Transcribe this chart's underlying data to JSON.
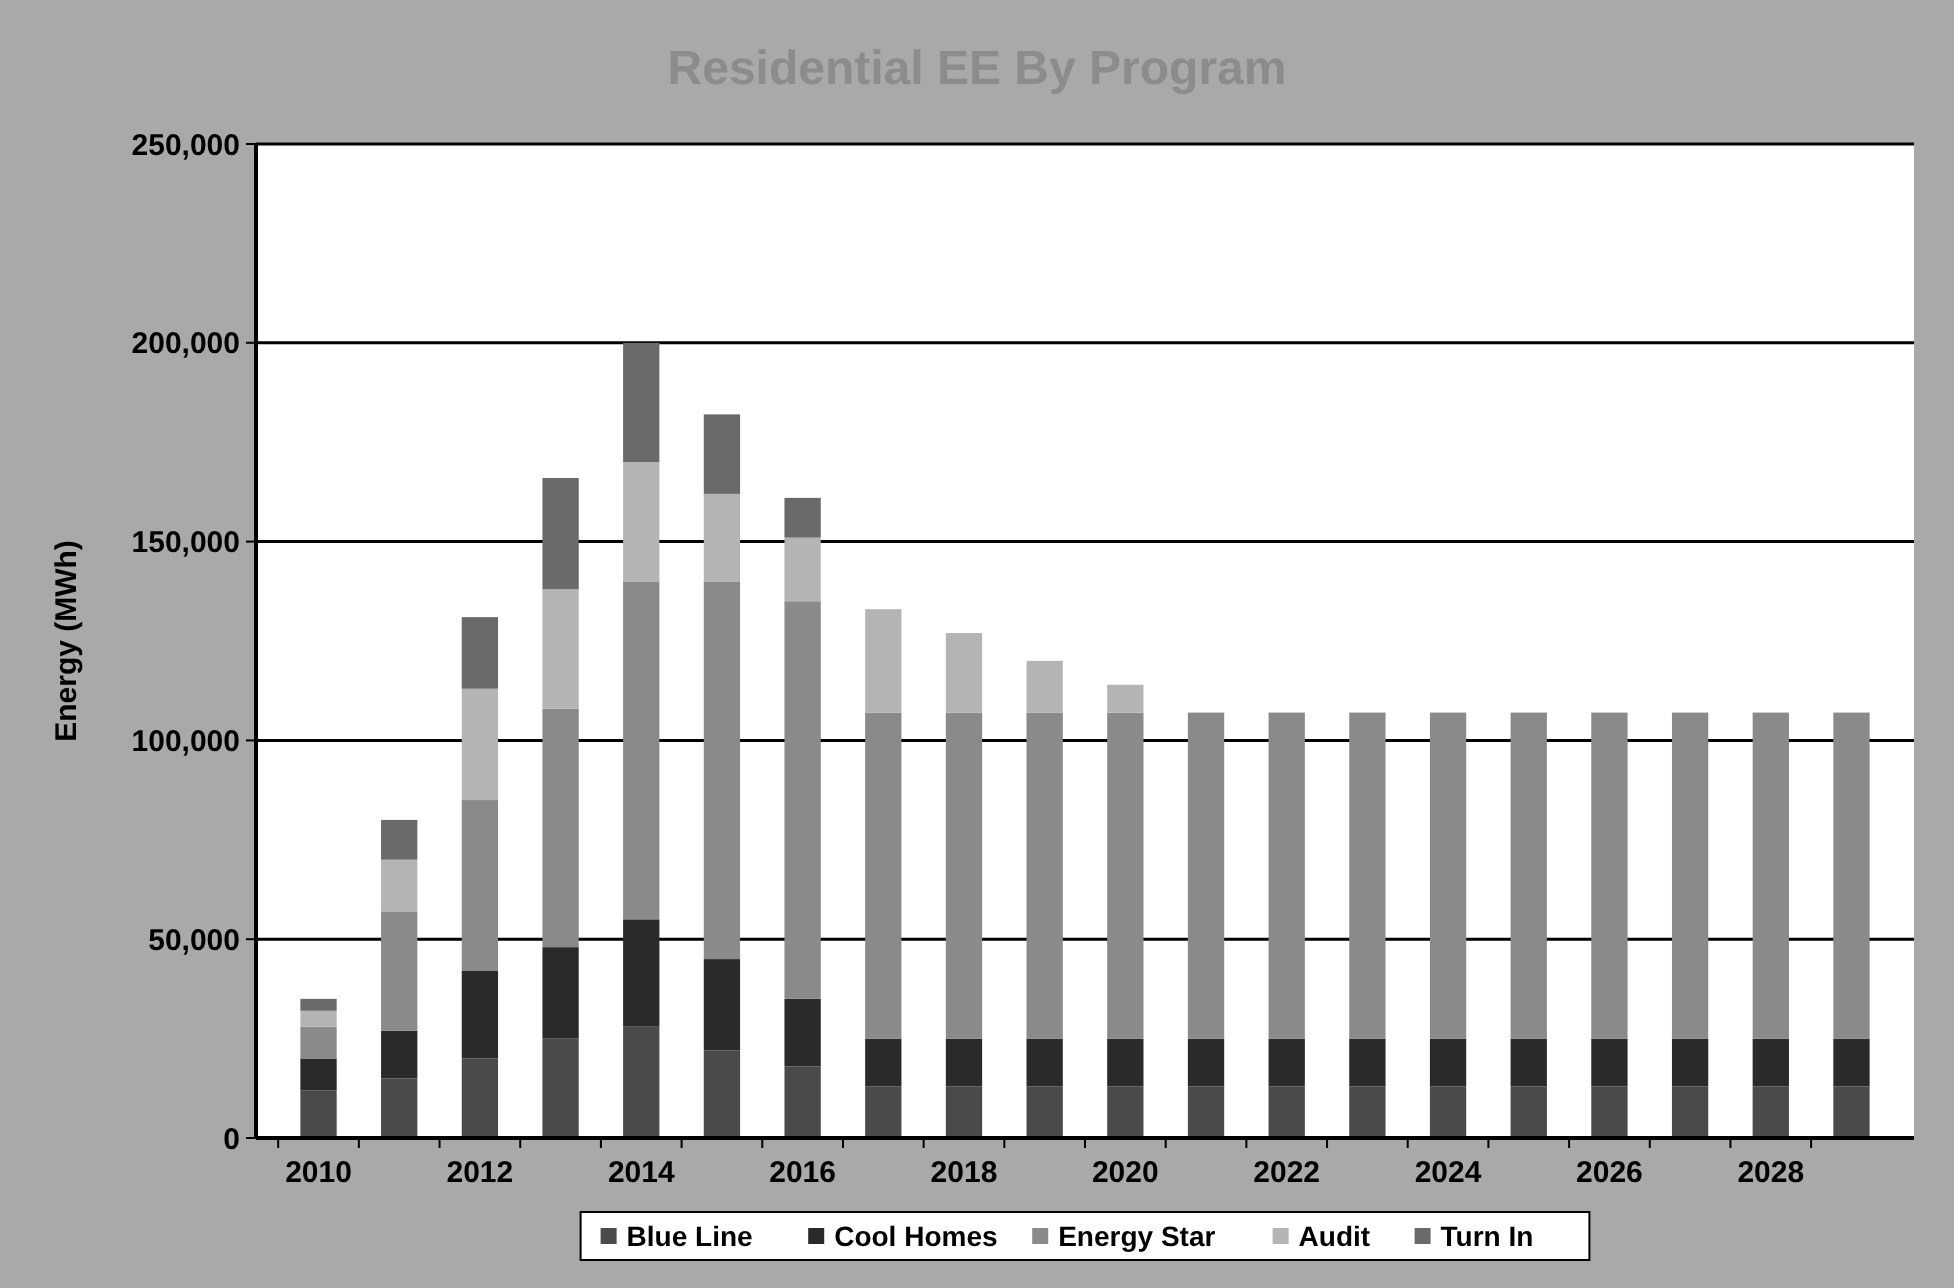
{
  "chart_data": {
    "type": "bar",
    "stacked": true,
    "title": "Residential EE By Program",
    "ylabel": "Energy (MWh)",
    "categories": [
      "2010",
      null,
      "2012",
      null,
      "2014",
      null,
      "2016",
      null,
      "2018",
      null,
      "2020",
      null,
      "2022",
      null,
      "2024",
      null,
      "2026",
      null,
      "2028",
      null
    ],
    "series": [
      {
        "name": "Blue Line",
        "color": "#4a4a4a",
        "values": [
          12000,
          15000,
          20000,
          25000,
          28000,
          22000,
          18000,
          13000,
          13000,
          13000,
          13000,
          13000,
          13000,
          13000,
          13000,
          13000,
          13000,
          13000,
          13000,
          13000
        ]
      },
      {
        "name": "Cool Homes",
        "color": "#2a2a2a",
        "values": [
          8000,
          12000,
          22000,
          23000,
          27000,
          23000,
          17000,
          12000,
          12000,
          12000,
          12000,
          12000,
          12000,
          12000,
          12000,
          12000,
          12000,
          12000,
          12000,
          12000
        ]
      },
      {
        "name": "Energy Star",
        "color": "#8a8a8a",
        "values": [
          8000,
          30000,
          43000,
          60000,
          85000,
          95000,
          100000,
          82000,
          82000,
          82000,
          82000,
          82000,
          82000,
          82000,
          82000,
          82000,
          82000,
          82000,
          82000,
          82000
        ]
      },
      {
        "name": "Audit",
        "color": "#b4b4b4",
        "values": [
          4000,
          13000,
          28000,
          30000,
          30000,
          22000,
          16000,
          26000,
          20000,
          13000,
          7000,
          0,
          0,
          0,
          0,
          0,
          0,
          0,
          0,
          0
        ]
      },
      {
        "name": "Turn In",
        "color": "#6a6a6a",
        "values": [
          3000,
          10000,
          18000,
          28000,
          30000,
          20000,
          10000,
          0,
          0,
          0,
          0,
          0,
          0,
          0,
          0,
          0,
          0,
          0,
          0,
          0
        ]
      }
    ],
    "ylim": [
      0,
      250000
    ],
    "yticks": [
      0,
      {
        "value": 50000,
        "label": "50,000"
      },
      {
        "value": 100000,
        "label": "100,000"
      },
      {
        "value": 150000,
        "label": "150,000"
      },
      {
        "value": 200000,
        "label": "200,000"
      },
      {
        "value": 250000,
        "label": "250,000"
      }
    ],
    "grid": "y",
    "legend": "bottom"
  }
}
